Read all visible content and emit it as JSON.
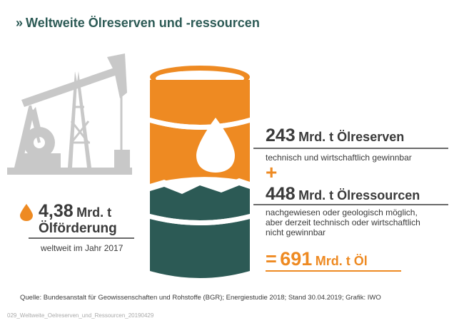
{
  "header": {
    "chevron": "»",
    "title": "Weltweite Ölreserven und -ressourcen"
  },
  "reserves": {
    "value": "243",
    "unit": "Mrd. t Ölreserven",
    "note": "technisch und wirtschaftlich gewinnbar"
  },
  "plus": "+",
  "resources": {
    "value": "448",
    "unit": "Mrd. t Ölressourcen",
    "note_lines": [
      "nachgewiesen oder geologisch möglich,",
      "aber derzeit technisch oder wirtschaftlich",
      "nicht gewinnbar"
    ]
  },
  "total": {
    "prefix": "=",
    "value": "691",
    "unit": "Mrd. t Öl"
  },
  "production": {
    "value": "4,38",
    "unit": "Mrd. t",
    "label": "Ölförderung",
    "note": "weltweit im Jahr 2017"
  },
  "footer": {
    "source": "Quelle: Bundesanstalt für Geowissenschaften und Rohstoffe (BGR); Energiestudie 2018; Stand 30.04.2019; Grafik: IWO",
    "file_id": "029_Weltweite_Oelreserven_und_Ressourcen_20190429"
  },
  "colors": {
    "orange": "#ee8a22",
    "teal": "#2c5a55",
    "grey": "#c8c8c8",
    "text": "#3a3a3a"
  },
  "icons": {
    "pump": "oil-pump-icon",
    "barrel": "oil-barrel-icon",
    "drop": "oil-drop-icon"
  }
}
